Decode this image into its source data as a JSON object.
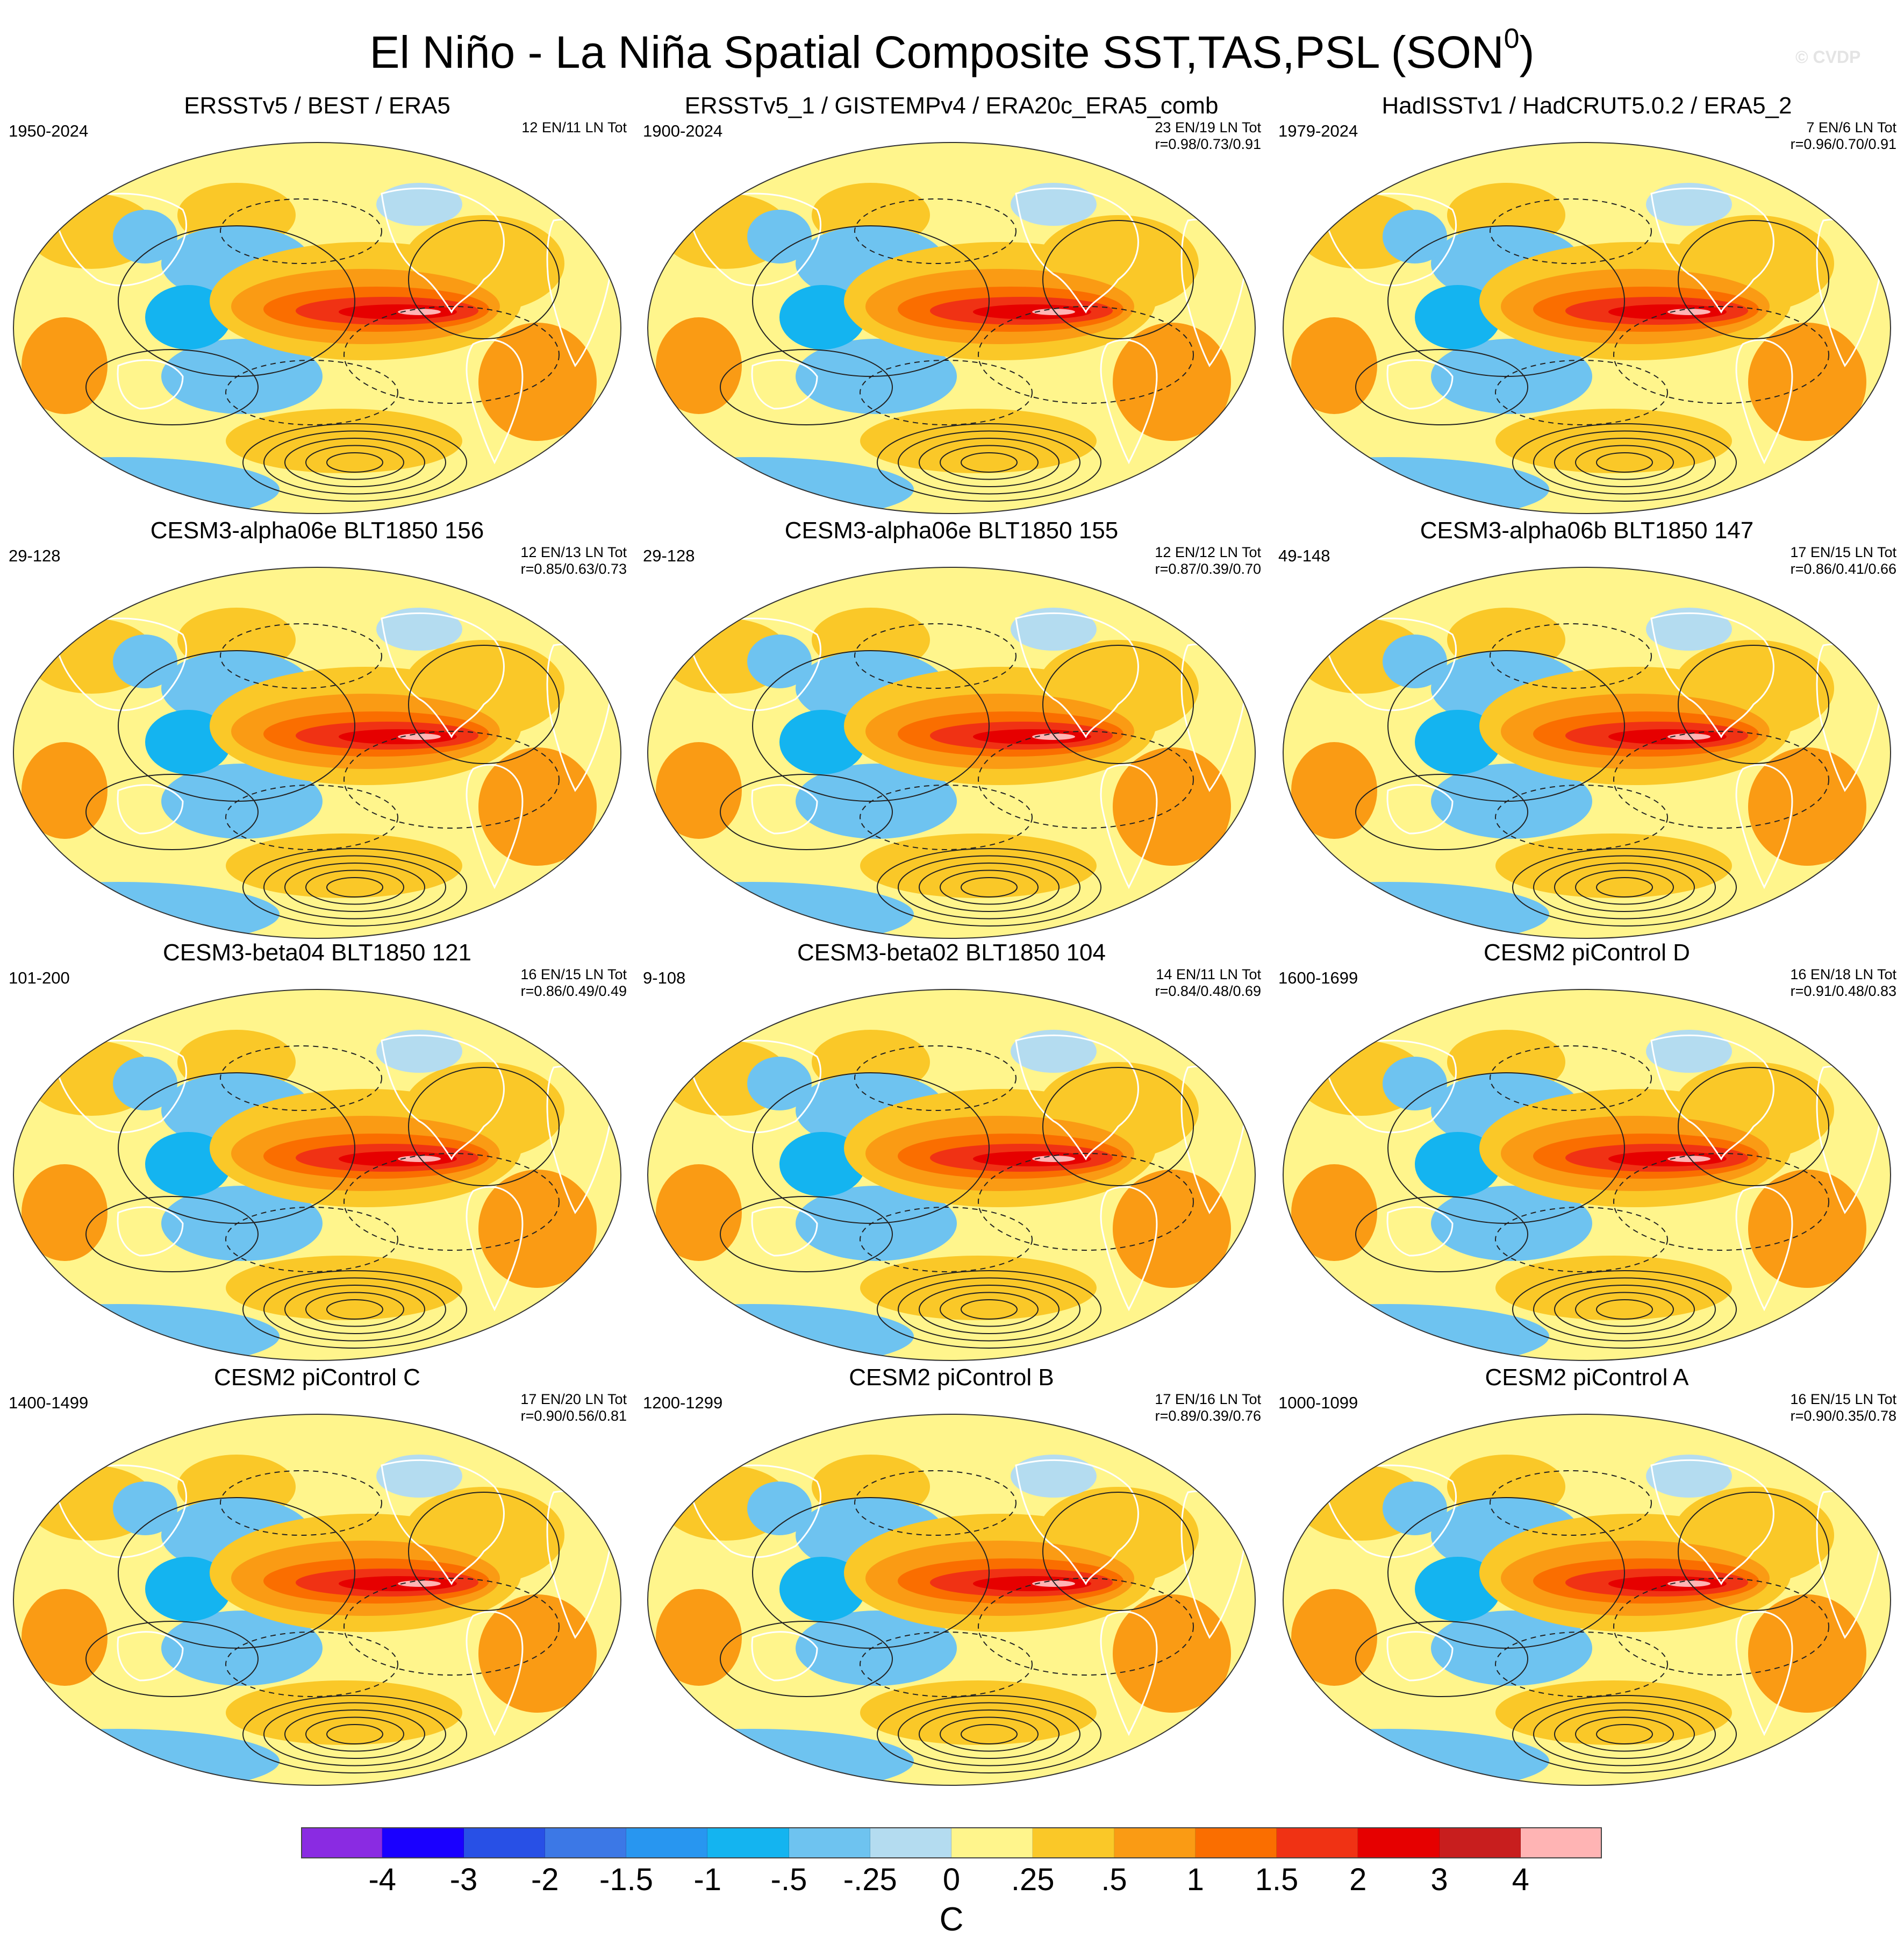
{
  "figure": {
    "title": "El Niño - La Niña Spatial Composite SST,TAS,PSL (SON",
    "title_sup": "0",
    "title_close": ")",
    "watermark": "© CVDP"
  },
  "panels": [
    {
      "title": "ERSSTv5 / BEST / ERA5",
      "period": "1950-2024",
      "stats1": "12 EN/11 LN Tot",
      "stats2": ""
    },
    {
      "title": "ERSSTv5_1 / GISTEMPv4 / ERA20c_ERA5_comb",
      "period": "1900-2024",
      "stats1": "23 EN/19 LN Tot",
      "stats2": "r=0.98/0.73/0.91"
    },
    {
      "title": "HadISSTv1 / HadCRUT5.0.2 / ERA5_2",
      "period": "1979-2024",
      "stats1": "7 EN/6 LN Tot",
      "stats2": "r=0.96/0.70/0.91"
    },
    {
      "title": "CESM3-alpha06e BLT1850 156",
      "period": "29-128",
      "stats1": "12 EN/13 LN Tot",
      "stats2": "r=0.85/0.63/0.73"
    },
    {
      "title": "CESM3-alpha06e BLT1850 155",
      "period": "29-128",
      "stats1": "12 EN/12 LN Tot",
      "stats2": "r=0.87/0.39/0.70"
    },
    {
      "title": "CESM3-alpha06b BLT1850 147",
      "period": "49-148",
      "stats1": "17 EN/15 LN Tot",
      "stats2": "r=0.86/0.41/0.66"
    },
    {
      "title": "CESM3-beta04 BLT1850 121",
      "period": "101-200",
      "stats1": "16 EN/15 LN Tot",
      "stats2": "r=0.86/0.49/0.49"
    },
    {
      "title": "CESM3-beta02 BLT1850 104",
      "period": "9-108",
      "stats1": "14 EN/11 LN Tot",
      "stats2": "r=0.84/0.48/0.69"
    },
    {
      "title": "CESM2 piControl D",
      "period": "1600-1699",
      "stats1": "16 EN/18 LN Tot",
      "stats2": "r=0.91/0.48/0.83"
    },
    {
      "title": "CESM2 piControl C",
      "period": "1400-1499",
      "stats1": "17 EN/20 LN Tot",
      "stats2": "r=0.90/0.56/0.81"
    },
    {
      "title": "CESM2 piControl B",
      "period": "1200-1299",
      "stats1": "17 EN/16 LN Tot",
      "stats2": "r=0.89/0.39/0.76"
    },
    {
      "title": "CESM2 piControl A",
      "period": "1000-1099",
      "stats1": "16 EN/15 LN Tot",
      "stats2": "r=0.90/0.35/0.78"
    }
  ],
  "colorbar": {
    "units": "C",
    "colors": [
      "#8a2be2",
      "#1a00ff",
      "#2850e6",
      "#3c78e6",
      "#2896f0",
      "#14b4f0",
      "#6ec3f0",
      "#b4dcf0",
      "#fff58c",
      "#fac828",
      "#fa9b14",
      "#fa6e00",
      "#f03214",
      "#e60000",
      "#c81e1e",
      "#ffb4b4"
    ],
    "labels": [
      "-4",
      "-3",
      "-2",
      "-1.5",
      "-1",
      "-.5",
      "-.25",
      "0",
      ".25",
      ".5",
      "1",
      "1.5",
      "2",
      "3",
      "4"
    ]
  }
}
